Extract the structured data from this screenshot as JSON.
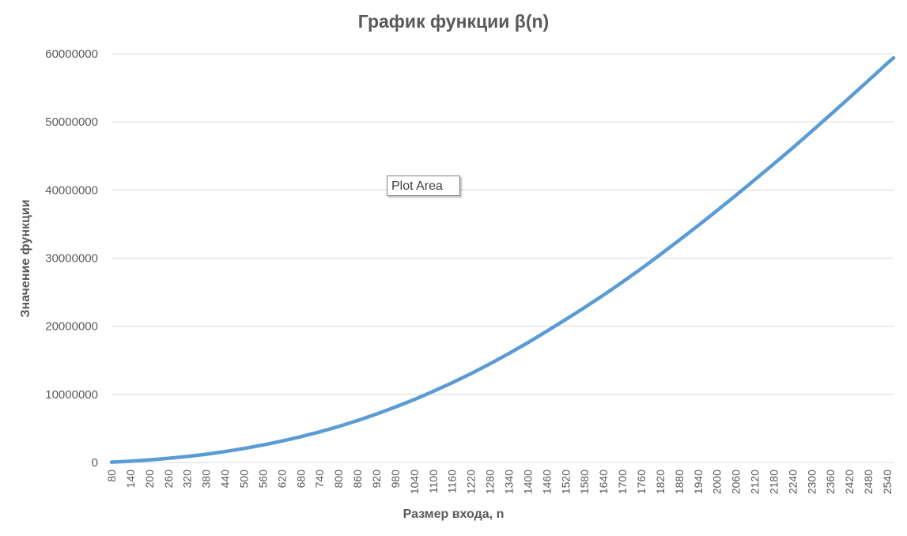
{
  "chart_data": {
    "type": "line",
    "title": "График функции β(n)",
    "xlabel": "Размер входа, n",
    "ylabel": "Значение функции",
    "x_tick_labels": [
      "80",
      "140",
      "200",
      "260",
      "320",
      "380",
      "440",
      "500",
      "560",
      "620",
      "680",
      "740",
      "800",
      "860",
      "920",
      "980",
      "1040",
      "1100",
      "1160",
      "1220",
      "1280",
      "1340",
      "1400",
      "1460",
      "1520",
      "1580",
      "1640",
      "1700",
      "1760",
      "1820",
      "1880",
      "1940",
      "2000",
      "2060",
      "2120",
      "2180",
      "2240",
      "2300",
      "2360",
      "2420",
      "2480",
      "2540"
    ],
    "y_tick_labels": [
      "0",
      "10000000",
      "20000000",
      "30000000",
      "40000000",
      "50000000",
      "60000000"
    ],
    "ylim": [
      0,
      60000000
    ],
    "xlim": [
      80,
      2560
    ],
    "grid": true,
    "legend": "none",
    "series": [
      {
        "color": "#5B9BD5",
        "x": [
          80,
          140,
          200,
          260,
          320,
          380,
          440,
          500,
          560,
          620,
          680,
          740,
          800,
          860,
          920,
          980,
          1040,
          1100,
          1160,
          1220,
          1280,
          1340,
          1400,
          1460,
          1520,
          1580,
          1640,
          1700,
          1760,
          1820,
          1880,
          1940,
          2000,
          2060,
          2120,
          2180,
          2240,
          2300,
          2360,
          2420,
          2480,
          2540,
          2560
        ],
        "values": [
          50000,
          180000,
          370000,
          600000,
          880000,
          1210000,
          1600000,
          2050000,
          2560000,
          3140000,
          3780000,
          4490000,
          5280000,
          6150000,
          7100000,
          8130000,
          9240000,
          10430000,
          11700000,
          13050000,
          14480000,
          15990000,
          17580000,
          19250000,
          20980000,
          22750000,
          24570000,
          26470000,
          28460000,
          30510000,
          32620000,
          34770000,
          36970000,
          39220000,
          41500000,
          43820000,
          46180000,
          48600000,
          51050000,
          53550000,
          56050000,
          58600000,
          59400000
        ]
      }
    ]
  },
  "overlay": {
    "tooltip_label": "Plot Area"
  }
}
